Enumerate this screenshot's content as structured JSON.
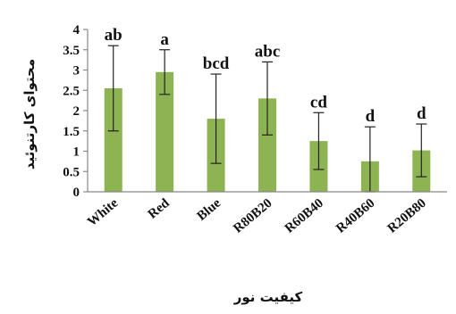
{
  "chart_data": {
    "type": "bar",
    "xlabel": "کیفیت نور",
    "ylabel": "محتوای کارتنوئید",
    "ylim": [
      0,
      4
    ],
    "yticks": [
      0,
      0.5,
      1,
      1.5,
      2,
      2.5,
      3,
      3.5,
      4
    ],
    "categories": [
      "White",
      "Red",
      "Blue",
      "R80B20",
      "R60B40",
      "R40B60",
      "R20B80"
    ],
    "values": [
      2.55,
      2.95,
      1.8,
      2.3,
      1.25,
      0.75,
      1.02
    ],
    "errors": [
      1.05,
      0.55,
      1.1,
      0.9,
      0.7,
      0.85,
      0.65
    ],
    "letters": [
      "ab",
      "a",
      "bcd",
      "abc",
      "cd",
      "d",
      "d"
    ],
    "bar_color": "#8db352",
    "legend": "none",
    "grid": false
  }
}
